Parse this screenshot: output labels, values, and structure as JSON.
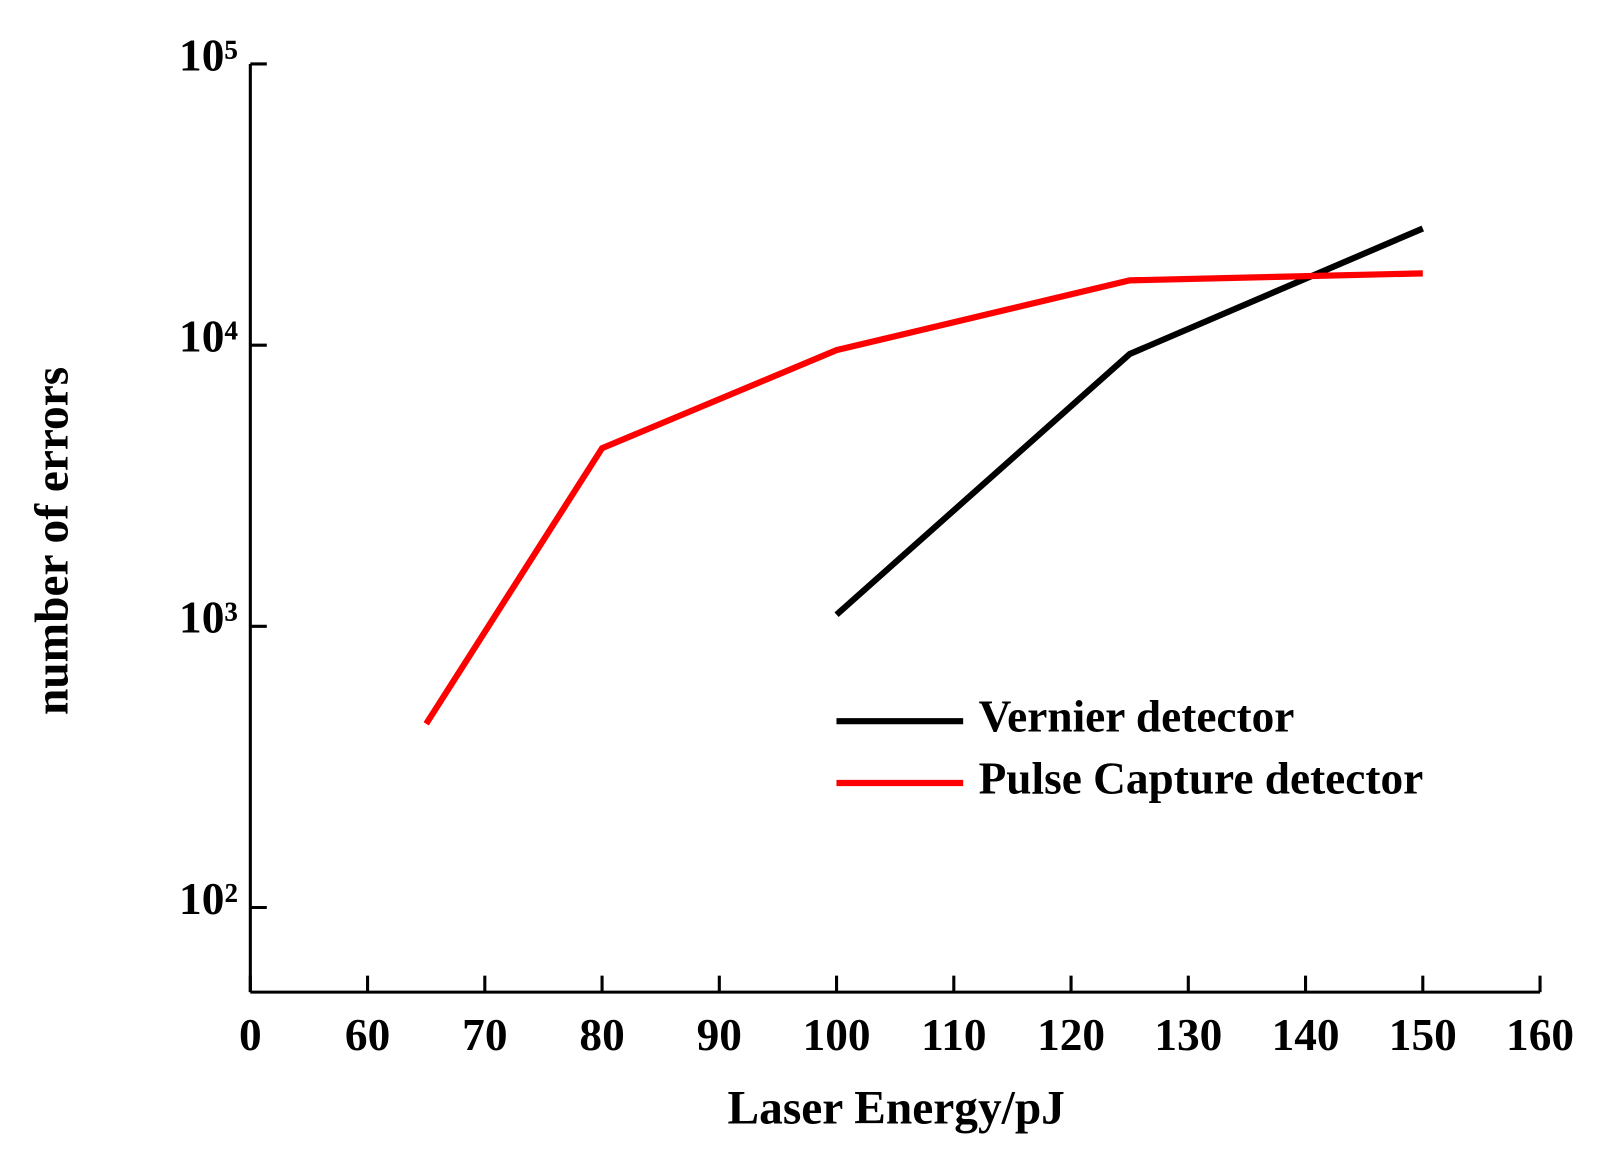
{
  "chart_data": {
    "type": "line",
    "xlabel": "Laser Energy/pJ",
    "ylabel": "number of errors",
    "xlim": [
      50,
      160
    ],
    "xticks": [
      {
        "value": 50,
        "label": "0"
      },
      60,
      70,
      80,
      90,
      100,
      110,
      120,
      130,
      140,
      150,
      160
    ],
    "ylim": [
      50,
      100000
    ],
    "yscale": "log",
    "yticks": [
      {
        "value": 100,
        "label": "10²"
      },
      {
        "value": 1000,
        "label": "10³"
      },
      {
        "value": 10000,
        "label": "10⁴"
      },
      {
        "value": 100000,
        "label": "10⁵"
      }
    ],
    "legend": "lower right",
    "series": [
      {
        "name": "Vernier detector",
        "color": "#000000",
        "x": [
          100,
          125,
          150
        ],
        "values": [
          1100,
          9300,
          26000
        ]
      },
      {
        "name": "Pulse Capture detector",
        "color": "#ff0000",
        "x": [
          65,
          80,
          100,
          125,
          150
        ],
        "values": [
          450,
          4300,
          9600,
          17000,
          18000
        ]
      }
    ]
  }
}
